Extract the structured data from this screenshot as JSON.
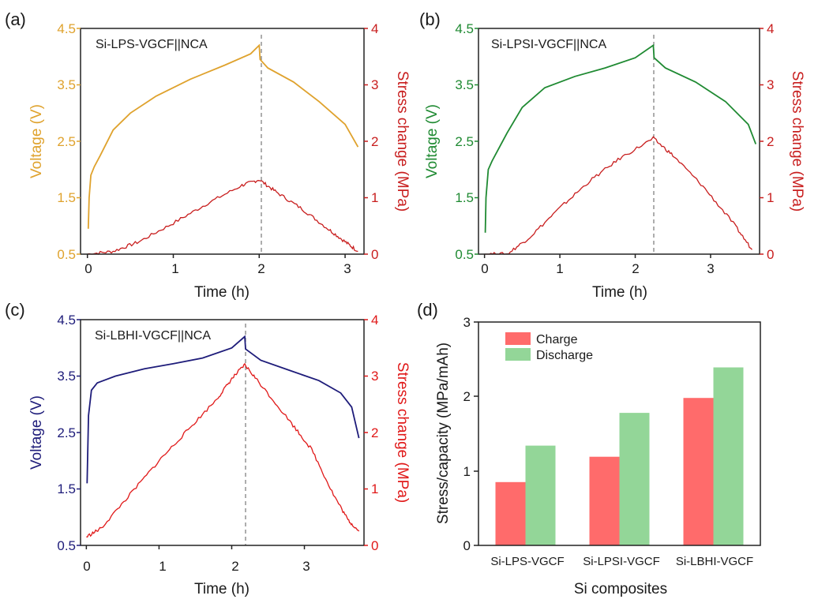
{
  "chart_data": [
    {
      "panel_label": "(a)",
      "type": "line",
      "annotation": "Si-LPS-VGCF||NCA",
      "xlabel": "Time (h)",
      "ylabel_left": "Voltage (V)",
      "ylabel_right": "Stress change (MPa)",
      "xlim": [
        -0.08,
        3.22
      ],
      "xticks": [
        "0",
        "1",
        "2",
        "3"
      ],
      "ylim_left": [
        0.5,
        4.5
      ],
      "yticks_left": [
        "0.5",
        "1.5",
        "2.5",
        "3.5",
        "4.5"
      ],
      "ylim_right": [
        0,
        4
      ],
      "yticks_right": [
        "0",
        "1",
        "2",
        "3",
        "4"
      ],
      "left_color": "#DFA22D",
      "right_color": "#C81E1E",
      "switch_time": 2.0,
      "voltage": [
        [
          0.01,
          0.95
        ],
        [
          0.02,
          1.5
        ],
        [
          0.04,
          1.9
        ],
        [
          0.08,
          2.05
        ],
        [
          0.15,
          2.25
        ],
        [
          0.3,
          2.7
        ],
        [
          0.5,
          3.0
        ],
        [
          0.8,
          3.3
        ],
        [
          1.2,
          3.6
        ],
        [
          1.6,
          3.85
        ],
        [
          1.9,
          4.05
        ],
        [
          2.0,
          4.2
        ],
        [
          2.01,
          3.95
        ],
        [
          2.1,
          3.8
        ],
        [
          2.4,
          3.55
        ],
        [
          2.7,
          3.2
        ],
        [
          3.0,
          2.8
        ],
        [
          3.15,
          2.4
        ]
      ],
      "stress": [
        [
          0.0,
          0.0
        ],
        [
          0.3,
          0.05
        ],
        [
          0.6,
          0.22
        ],
        [
          1.0,
          0.55
        ],
        [
          1.4,
          0.9
        ],
        [
          1.8,
          1.22
        ],
        [
          2.0,
          1.32
        ],
        [
          2.2,
          1.1
        ],
        [
          2.5,
          0.8
        ],
        [
          2.8,
          0.45
        ],
        [
          3.0,
          0.22
        ],
        [
          3.15,
          0.05
        ]
      ]
    },
    {
      "panel_label": "(b)",
      "type": "line",
      "annotation": "Si-LPSI-VGCF||NCA",
      "xlabel": "Time (h)",
      "ylabel_left": "Voltage (V)",
      "ylabel_right": "Stress change (MPa)",
      "xlim": [
        -0.08,
        3.65
      ],
      "xticks": [
        "0",
        "1",
        "2",
        "3"
      ],
      "ylim_left": [
        0.5,
        4.5
      ],
      "yticks_left": [
        "0.5",
        "1.5",
        "2.5",
        "3.5",
        "4.5"
      ],
      "ylim_right": [
        0,
        4
      ],
      "yticks_right": [
        "0",
        "1",
        "2",
        "3",
        "4"
      ],
      "left_color": "#1F8A32",
      "right_color": "#C81E1E",
      "switch_time": 2.24,
      "voltage": [
        [
          0.01,
          0.88
        ],
        [
          0.02,
          1.5
        ],
        [
          0.05,
          2.0
        ],
        [
          0.1,
          2.15
        ],
        [
          0.3,
          2.65
        ],
        [
          0.5,
          3.1
        ],
        [
          0.8,
          3.45
        ],
        [
          1.2,
          3.65
        ],
        [
          1.6,
          3.8
        ],
        [
          2.0,
          3.98
        ],
        [
          2.24,
          4.2
        ],
        [
          2.25,
          3.98
        ],
        [
          2.4,
          3.8
        ],
        [
          2.8,
          3.55
        ],
        [
          3.2,
          3.2
        ],
        [
          3.5,
          2.8
        ],
        [
          3.6,
          2.45
        ]
      ],
      "stress": [
        [
          0.0,
          0.0
        ],
        [
          0.3,
          0.0
        ],
        [
          0.6,
          0.3
        ],
        [
          1.0,
          0.82
        ],
        [
          1.4,
          1.3
        ],
        [
          1.8,
          1.7
        ],
        [
          2.24,
          2.05
        ],
        [
          2.5,
          1.75
        ],
        [
          2.9,
          1.2
        ],
        [
          3.3,
          0.55
        ],
        [
          3.55,
          0.08
        ]
      ]
    },
    {
      "panel_label": "(c)",
      "type": "line",
      "annotation": "Si-LBHI-VGCF||NCA",
      "xlabel": "Time (h)",
      "ylabel_left": "Voltage (V)",
      "ylabel_right": "Stress change (MPa)",
      "xlim": [
        -0.08,
        3.82
      ],
      "xticks": [
        "0",
        "1",
        "2",
        "3"
      ],
      "ylim_left": [
        0.5,
        4.5
      ],
      "yticks_left": [
        "0.5",
        "1.5",
        "2.5",
        "3.5",
        "4.5"
      ],
      "ylim_right": [
        0,
        4
      ],
      "yticks_right": [
        "0",
        "1",
        "2",
        "3",
        "4"
      ],
      "left_color": "#1E1C7A",
      "right_color": "#E01818",
      "switch_time": 2.18,
      "voltage": [
        [
          0.01,
          1.6
        ],
        [
          0.03,
          2.8
        ],
        [
          0.07,
          3.25
        ],
        [
          0.15,
          3.38
        ],
        [
          0.4,
          3.5
        ],
        [
          0.8,
          3.63
        ],
        [
          1.2,
          3.72
        ],
        [
          1.6,
          3.82
        ],
        [
          2.0,
          4.0
        ],
        [
          2.18,
          4.2
        ],
        [
          2.19,
          3.98
        ],
        [
          2.4,
          3.78
        ],
        [
          2.8,
          3.6
        ],
        [
          3.2,
          3.42
        ],
        [
          3.5,
          3.2
        ],
        [
          3.65,
          2.95
        ],
        [
          3.75,
          2.4
        ]
      ],
      "stress": [
        [
          0.0,
          0.15
        ],
        [
          0.2,
          0.3
        ],
        [
          0.6,
          0.9
        ],
        [
          1.0,
          1.5
        ],
        [
          1.4,
          2.05
        ],
        [
          1.8,
          2.6
        ],
        [
          2.0,
          2.95
        ],
        [
          2.18,
          3.2
        ],
        [
          2.4,
          2.85
        ],
        [
          2.8,
          2.2
        ],
        [
          3.1,
          1.7
        ],
        [
          3.4,
          0.9
        ],
        [
          3.6,
          0.45
        ],
        [
          3.75,
          0.25
        ]
      ]
    },
    {
      "panel_label": "(d)",
      "type": "bar",
      "categories": [
        "Si-LPS-VGCF",
        "Si-LPSI-VGCF",
        "Si-LBHI-VGCF"
      ],
      "series": [
        {
          "name": "Charge",
          "values": [
            0.85,
            1.19,
            1.98
          ],
          "color": "#FF6B6B"
        },
        {
          "name": "Discharge",
          "values": [
            1.34,
            1.78,
            2.39
          ],
          "color": "#93D698"
        }
      ],
      "xlabel": "Si composites",
      "ylabel": "Stress/capacity (MPa/mAh)",
      "ylim": [
        0,
        3
      ],
      "yticks": [
        "0",
        "1",
        "2",
        "3"
      ],
      "legend_position": "top-left"
    }
  ]
}
